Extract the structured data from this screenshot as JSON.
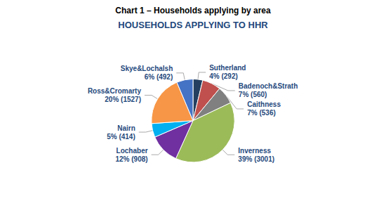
{
  "chart_data": {
    "type": "pie",
    "title": "Chart 1 – Households applying by area",
    "subtitle": "HOUSEHOLDS APPLYING TO HHR",
    "categories": [
      "Sutherland",
      "Badenoch&Strath",
      "Caithness",
      "Inverness",
      "Lochaber",
      "Nairn",
      "Ross&Cromarty",
      "Skye&Lochalsh"
    ],
    "values": [
      292,
      560,
      536,
      3001,
      908,
      414,
      1527,
      492
    ],
    "value_labels": [
      "4% (292)",
      "7% (560)",
      "7% (536)",
      "39% (3001)",
      "12% (908)",
      "5% (414)",
      "20% (1527)",
      "6% (492)"
    ],
    "colors": [
      "#243F60",
      "#C0504D",
      "#808080",
      "#9BBB59",
      "#7030A0",
      "#00B0F0",
      "#F79646",
      "#4472C4"
    ],
    "data_labels": true
  }
}
